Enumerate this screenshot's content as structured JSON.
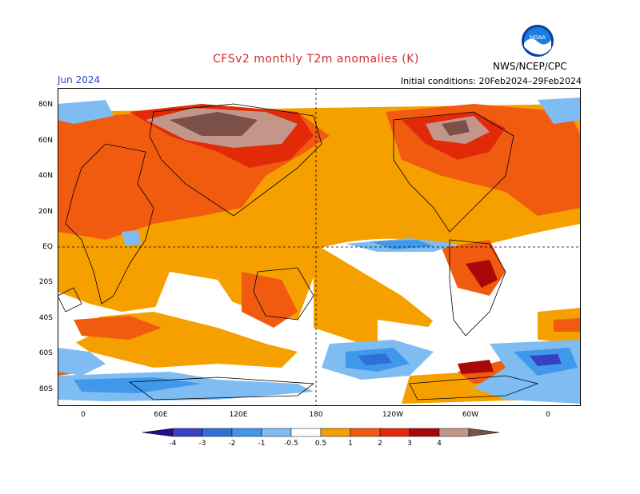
{
  "header": {
    "title": "CFSv2 monthly T2m anomalies (K)",
    "month": "Jun 2024",
    "initial_conditions": "Initial conditions: 20Feb2024–29Feb2024",
    "agency": "NWS/NCEP/CPC",
    "logo_text": "NOAA"
  },
  "axes": {
    "lat_labels": [
      "80N",
      "60N",
      "40N",
      "20N",
      "EQ",
      "20S",
      "40S",
      "60S",
      "80S"
    ],
    "lon_labels": [
      "0",
      "60E",
      "120E",
      "180",
      "120W",
      "60W",
      "0"
    ]
  },
  "legend": {
    "labels": [
      "-4",
      "-3",
      "-2",
      "-1",
      "-0.5",
      "0.5",
      "1",
      "2",
      "3",
      "4"
    ],
    "colors": [
      "#2a0a8a",
      "#3a3fc8",
      "#2f6fd8",
      "#3f98ea",
      "#7fbcf2",
      "#ffffff",
      "#f6a000",
      "#f15b10",
      "#e22a08",
      "#a80808",
      "#c3968a",
      "#7a5048"
    ]
  },
  "colors": {
    "warm1": "#f6a000",
    "warm2": "#f15b10",
    "warm3": "#e22a08",
    "warm4": "#a80808",
    "warm5": "#c3968a",
    "warm6": "#7a5048",
    "cool1": "#7fbcf2",
    "cool2": "#3f98ea",
    "cool3": "#2f6fd8",
    "cool4": "#3a3fc8",
    "title_red": "#d22a2a",
    "month_blue": "#2b46c8"
  }
}
